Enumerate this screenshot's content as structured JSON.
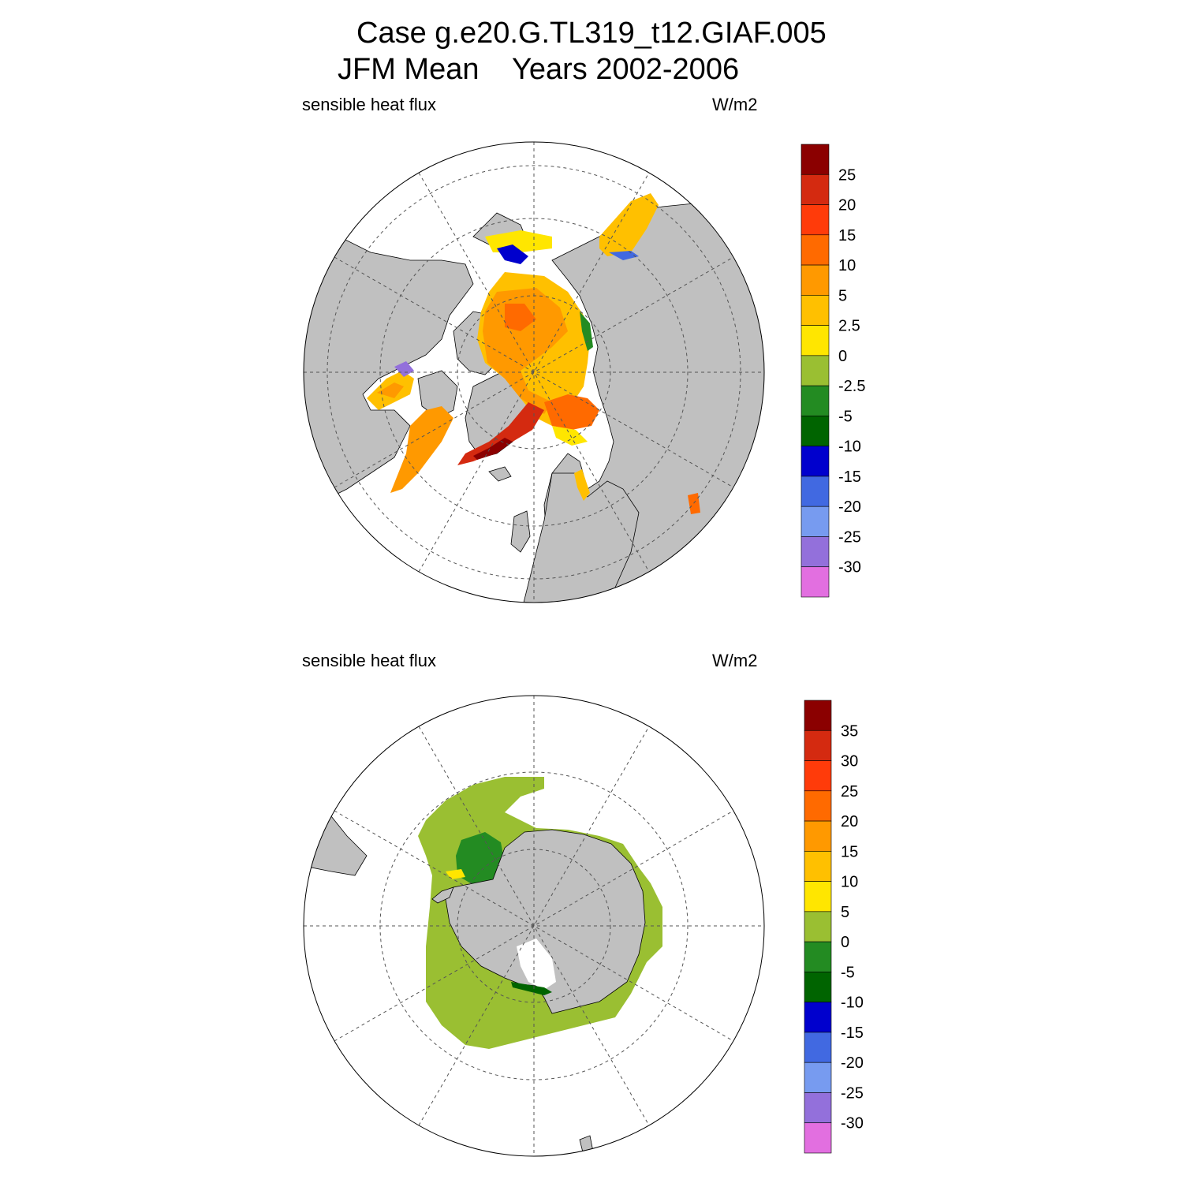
{
  "title": {
    "line1": "Case g.e20.G.TL319_t12.GIAF.005",
    "line2": "JFM Mean    Years 2002-2006"
  },
  "panels": [
    {
      "id": "north",
      "variable_label": "sensible heat flux",
      "units_label": "W/m2",
      "hemisphere": "Northern",
      "colorbar": {
        "tick_labels": [
          "25",
          "20",
          "15",
          "10",
          "5",
          "2.5",
          "0",
          "-2.5",
          "-5",
          "-10",
          "-15",
          "-20",
          "-25",
          "-30"
        ],
        "colors": [
          "#8b0000",
          "#d42a10",
          "#ff3b0a",
          "#ff6a00",
          "#ff9900",
          "#ffc000",
          "#ffe600",
          "#9abf32",
          "#238b22",
          "#006400",
          "#0000cd",
          "#4169e1",
          "#779bf0",
          "#9370db",
          "#e26fe0"
        ]
      }
    },
    {
      "id": "south",
      "variable_label": "sensible heat flux",
      "units_label": "W/m2",
      "hemisphere": "Southern",
      "colorbar": {
        "tick_labels": [
          "35",
          "30",
          "25",
          "20",
          "15",
          "10",
          "5",
          "0",
          "-5",
          "-10",
          "-15",
          "-20",
          "-25",
          "-30"
        ],
        "colors": [
          "#8b0000",
          "#d42a10",
          "#ff3b0a",
          "#ff6a00",
          "#ff9900",
          "#ffc000",
          "#ffe600",
          "#9abf32",
          "#238b22",
          "#006400",
          "#0000cd",
          "#4169e1",
          "#779bf0",
          "#9370db",
          "#e26fe0"
        ]
      }
    }
  ],
  "land_color": "#c0c0c0",
  "coast_color": "#000000",
  "grid_color": "#555555"
}
